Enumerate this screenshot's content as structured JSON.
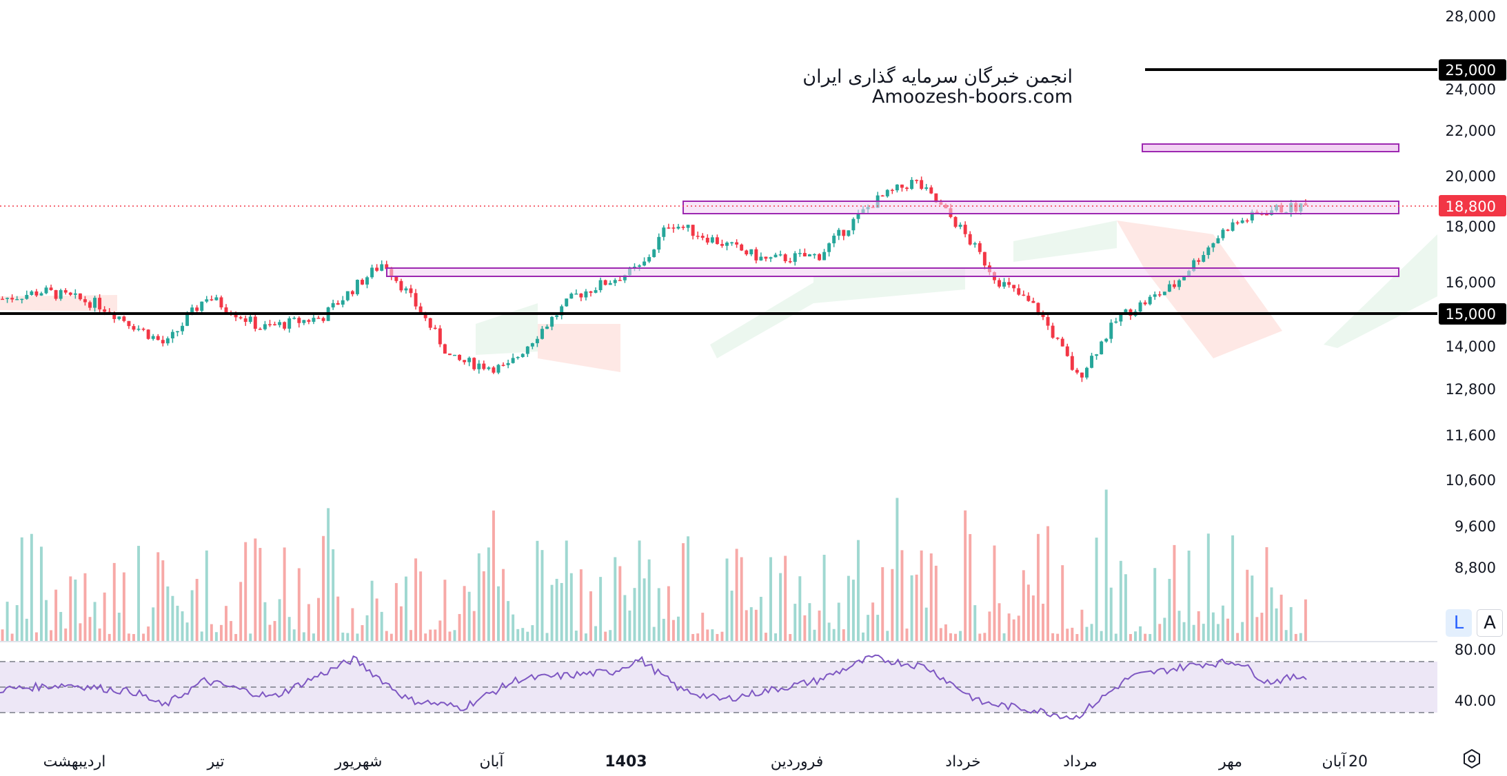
{
  "watermark": {
    "line1": "انجمن خبرگان سرمایه گذاری ایران",
    "line2": "Amoozesh-boors.com"
  },
  "price_badges": {
    "last_price": "18,800",
    "level_high": "25,000",
    "level_low": "15,000"
  },
  "rsi_axis": {
    "upper": "80.00",
    "lower": "40.00"
  },
  "scale_buttons": {
    "log": "L",
    "auto": "A"
  },
  "colors": {
    "up": "#26a69a",
    "down": "#f23645",
    "up_volume": "#9fd8d1",
    "down_volume": "#f7a9a7",
    "zone_fill": "#f2d2f3",
    "zone_stroke": "#9c27b0",
    "rsi_line": "#7e57c2",
    "rsi_band": "#ede7f6"
  },
  "chart_data": [
    {
      "type": "candlestick",
      "price_scale_ticks": [
        "28,000",
        "24,000",
        "22,000",
        "20,000",
        "18,000",
        "16,000",
        "14,000",
        "12,800",
        "11,600",
        "10,600",
        "9,600",
        "8,800"
      ],
      "time_labels": [
        "اردیبهشت",
        "تیر",
        "شهریور",
        "آبان",
        "1403",
        "فروردین",
        "خرداد",
        "مرداد",
        "مهر",
        "آبان",
        "20"
      ],
      "ylim": [
        8500,
        28500
      ],
      "scale": "log",
      "last_price": 18800,
      "horizontal_lines": [
        25000,
        15000
      ],
      "resistance_zones": [
        [
          21000,
          21500
        ],
        [
          18500,
          19000
        ],
        [
          16100,
          16500
        ]
      ],
      "anchors": [
        {
          "x": 0,
          "close": 14700
        },
        {
          "x": 0.03,
          "close": 15000
        },
        {
          "x": 0.07,
          "close": 14500
        },
        {
          "x": 0.12,
          "close": 13000
        },
        {
          "x": 0.15,
          "close": 14800
        },
        {
          "x": 0.19,
          "close": 13600
        },
        {
          "x": 0.235,
          "close": 14000
        },
        {
          "x": 0.28,
          "close": 16200
        },
        {
          "x": 0.33,
          "close": 12500
        },
        {
          "x": 0.37,
          "close": 12200
        },
        {
          "x": 0.42,
          "close": 14800
        },
        {
          "x": 0.47,
          "close": 16000
        },
        {
          "x": 0.49,
          "close": 18000
        },
        {
          "x": 0.53,
          "close": 17000
        },
        {
          "x": 0.56,
          "close": 16300
        },
        {
          "x": 0.6,
          "close": 16500
        },
        {
          "x": 0.64,
          "close": 19000
        },
        {
          "x": 0.67,
          "close": 20100
        },
        {
          "x": 0.7,
          "close": 18000
        },
        {
          "x": 0.73,
          "close": 15500
        },
        {
          "x": 0.76,
          "close": 14300
        },
        {
          "x": 0.79,
          "close": 11900
        },
        {
          "x": 0.82,
          "close": 14000
        },
        {
          "x": 0.86,
          "close": 15200
        },
        {
          "x": 0.9,
          "close": 17800
        },
        {
          "x": 0.93,
          "close": 18600
        },
        {
          "x": 0.96,
          "close": 18800
        }
      ],
      "volume_note": "volume bars shown in lower pane, colored by candle direction"
    },
    {
      "type": "line",
      "name": "RSI",
      "ylim": [
        25,
        90
      ],
      "levels": [
        70,
        50,
        30
      ],
      "anchors": [
        {
          "x": 0,
          "v": 48
        },
        {
          "x": 0.05,
          "v": 52
        },
        {
          "x": 0.1,
          "v": 46
        },
        {
          "x": 0.12,
          "v": 35
        },
        {
          "x": 0.15,
          "v": 55
        },
        {
          "x": 0.2,
          "v": 42
        },
        {
          "x": 0.26,
          "v": 72
        },
        {
          "x": 0.3,
          "v": 40
        },
        {
          "x": 0.34,
          "v": 34
        },
        {
          "x": 0.38,
          "v": 56
        },
        {
          "x": 0.45,
          "v": 62
        },
        {
          "x": 0.47,
          "v": 72
        },
        {
          "x": 0.5,
          "v": 48
        },
        {
          "x": 0.53,
          "v": 40
        },
        {
          "x": 0.6,
          "v": 55
        },
        {
          "x": 0.64,
          "v": 73
        },
        {
          "x": 0.68,
          "v": 66
        },
        {
          "x": 0.72,
          "v": 38
        },
        {
          "x": 0.76,
          "v": 32
        },
        {
          "x": 0.79,
          "v": 26
        },
        {
          "x": 0.83,
          "v": 58
        },
        {
          "x": 0.88,
          "v": 68
        },
        {
          "x": 0.91,
          "v": 70
        },
        {
          "x": 0.93,
          "v": 54
        },
        {
          "x": 0.96,
          "v": 59
        }
      ]
    }
  ]
}
